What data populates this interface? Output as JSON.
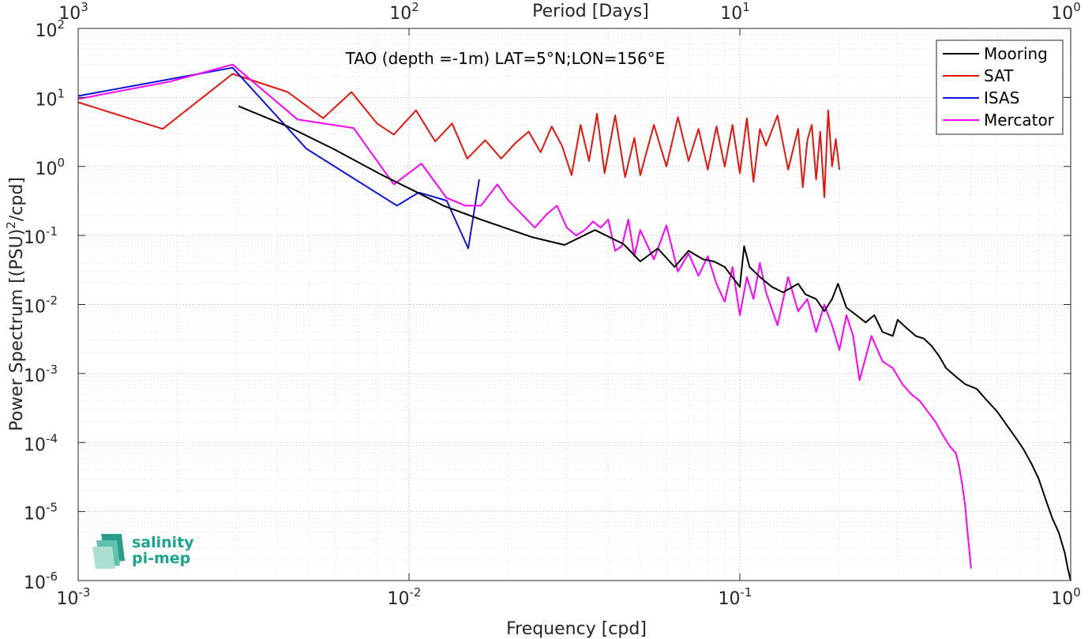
{
  "chart_data": {
    "type": "line",
    "title": "TAO (depth =-1m) LAT=5°N;LON=156°E",
    "xlabel": "Frequency [cpd]",
    "ylabel": "Power Spectrum [(PSU)²/cpd]",
    "ylabel_parts": {
      "pre": "Power Spectrum [(PSU)",
      "sup": "2",
      "post": "/cpd]"
    },
    "top_xlabel": "Period [Days]",
    "x_scale": "log",
    "y_scale": "log",
    "xlim": [
      0.001,
      1
    ],
    "ylim": [
      1e-06,
      100
    ],
    "grid": true,
    "minor_grid": true,
    "legend_position": "top-right",
    "x_ticks": [
      {
        "value": 0.001,
        "base": "10",
        "exp": "-3"
      },
      {
        "value": 0.01,
        "base": "10",
        "exp": "-2"
      },
      {
        "value": 0.1,
        "base": "10",
        "exp": "-1"
      },
      {
        "value": 1,
        "base": "10",
        "exp": "0"
      }
    ],
    "top_ticks": [
      {
        "value": 0.001,
        "base": "10",
        "exp": "3"
      },
      {
        "value": 0.01,
        "base": "10",
        "exp": "2"
      },
      {
        "value": 0.1,
        "base": "10",
        "exp": "1"
      },
      {
        "value": 1,
        "base": "10",
        "exp": "0"
      }
    ],
    "y_ticks": [
      {
        "value": 100,
        "base": "10",
        "exp": "2"
      },
      {
        "value": 10,
        "base": "10",
        "exp": "1"
      },
      {
        "value": 1,
        "base": "10",
        "exp": "0"
      },
      {
        "value": 0.1,
        "base": "10",
        "exp": "-1"
      },
      {
        "value": 0.01,
        "base": "10",
        "exp": "-2"
      },
      {
        "value": 0.001,
        "base": "10",
        "exp": "-3"
      },
      {
        "value": 0.0001,
        "base": "10",
        "exp": "-4"
      },
      {
        "value": 1e-05,
        "base": "10",
        "exp": "-5"
      },
      {
        "value": 1e-06,
        "base": "10",
        "exp": "-6"
      }
    ],
    "series": [
      {
        "name": "Mooring",
        "color": "#000000",
        "x": [
          0.00305,
          0.0043,
          0.0059,
          0.0083,
          0.0105,
          0.0127,
          0.0165,
          0.0235,
          0.0295,
          0.0365,
          0.0445,
          0.05,
          0.0565,
          0.0635,
          0.07,
          0.0775,
          0.0835,
          0.09,
          0.1,
          0.103,
          0.107,
          0.115,
          0.125,
          0.135,
          0.15,
          0.158,
          0.17,
          0.18,
          0.19,
          0.198,
          0.21,
          0.225,
          0.24,
          0.255,
          0.27,
          0.29,
          0.3,
          0.32,
          0.34,
          0.36,
          0.38,
          0.4,
          0.42,
          0.45,
          0.48,
          0.52,
          0.56,
          0.6,
          0.64,
          0.68,
          0.72,
          0.76,
          0.8,
          0.84,
          0.88,
          0.92,
          0.96,
          0.98,
          1.0
        ],
        "y": [
          7.5,
          3.8,
          1.8,
          0.75,
          0.43,
          0.27,
          0.17,
          0.095,
          0.073,
          0.12,
          0.075,
          0.042,
          0.065,
          0.035,
          0.06,
          0.045,
          0.042,
          0.035,
          0.018,
          0.07,
          0.035,
          0.025,
          0.018,
          0.015,
          0.02,
          0.014,
          0.012,
          0.008,
          0.012,
          0.02,
          0.009,
          0.007,
          0.0055,
          0.007,
          0.004,
          0.0035,
          0.006,
          0.0045,
          0.0035,
          0.0032,
          0.0025,
          0.0018,
          0.0012,
          0.0009,
          0.0007,
          0.0006,
          0.0004,
          0.00028,
          0.00018,
          0.00012,
          8e-05,
          5e-05,
          3e-05,
          1.5e-05,
          8e-06,
          5e-06,
          2.5e-06,
          1.5e-06,
          1e-06
        ]
      },
      {
        "name": "SAT",
        "color": "#e8140c",
        "x": [
          0.001,
          0.0018,
          0.00293,
          0.0043,
          0.0055,
          0.0067,
          0.008,
          0.009,
          0.0105,
          0.012,
          0.0135,
          0.015,
          0.017,
          0.019,
          0.021,
          0.023,
          0.025,
          0.027,
          0.029,
          0.031,
          0.033,
          0.035,
          0.037,
          0.039,
          0.042,
          0.045,
          0.048,
          0.05,
          0.055,
          0.06,
          0.065,
          0.07,
          0.075,
          0.08,
          0.085,
          0.09,
          0.095,
          0.1,
          0.105,
          0.11,
          0.115,
          0.12,
          0.13,
          0.14,
          0.15,
          0.155,
          0.16,
          0.165,
          0.17,
          0.175,
          0.18,
          0.185,
          0.19,
          0.195,
          0.2
        ],
        "y": [
          8.5,
          3.5,
          22,
          12,
          5,
          12,
          4.2,
          2.9,
          6.5,
          2.3,
          4.2,
          1.3,
          2.4,
          1.3,
          2.2,
          3.2,
          1.6,
          3.8,
          2.0,
          0.75,
          4.0,
          1.2,
          5.8,
          0.8,
          5.5,
          0.7,
          2.6,
          0.75,
          4.0,
          1.0,
          5.2,
          1.2,
          3.5,
          0.9,
          3.8,
          1.0,
          4.0,
          0.8,
          5.0,
          0.6,
          3.5,
          2.0,
          5.5,
          0.9,
          3.5,
          0.5,
          2.4,
          4.0,
          0.65,
          3.2,
          0.36,
          6.5,
          1.0,
          2.5,
          0.9
        ]
      },
      {
        "name": "ISAS",
        "color": "#0c14e0",
        "x": [
          0.001,
          0.00293,
          0.0049,
          0.0092,
          0.0107,
          0.013,
          0.0151,
          0.0163
        ],
        "y": [
          10.5,
          27,
          1.8,
          0.27,
          0.42,
          0.32,
          0.065,
          0.65
        ]
      },
      {
        "name": "Mercator",
        "color": "#ff00ff",
        "x": [
          0.001,
          0.0019,
          0.00293,
          0.0046,
          0.0068,
          0.009,
          0.0109,
          0.013,
          0.0148,
          0.0165,
          0.0185,
          0.02,
          0.022,
          0.024,
          0.026,
          0.028,
          0.03,
          0.032,
          0.034,
          0.036,
          0.038,
          0.04,
          0.042,
          0.044,
          0.046,
          0.048,
          0.05,
          0.055,
          0.06,
          0.065,
          0.07,
          0.075,
          0.08,
          0.085,
          0.09,
          0.095,
          0.1,
          0.105,
          0.11,
          0.115,
          0.12,
          0.13,
          0.14,
          0.15,
          0.16,
          0.17,
          0.18,
          0.19,
          0.2,
          0.21,
          0.22,
          0.23,
          0.25,
          0.27,
          0.29,
          0.31,
          0.33,
          0.35,
          0.37,
          0.39,
          0.41,
          0.43,
          0.45,
          0.46,
          0.47,
          0.48,
          0.49,
          0.5
        ],
        "y": [
          9.5,
          17,
          30,
          4.8,
          3.6,
          0.55,
          1.1,
          0.35,
          0.27,
          0.27,
          0.55,
          0.32,
          0.2,
          0.13,
          0.2,
          0.27,
          0.13,
          0.1,
          0.12,
          0.16,
          0.13,
          0.17,
          0.06,
          0.07,
          0.17,
          0.05,
          0.12,
          0.045,
          0.14,
          0.03,
          0.055,
          0.026,
          0.05,
          0.02,
          0.011,
          0.035,
          0.007,
          0.025,
          0.012,
          0.04,
          0.015,
          0.005,
          0.025,
          0.008,
          0.012,
          0.004,
          0.01,
          0.005,
          0.0022,
          0.007,
          0.0035,
          0.0008,
          0.0035,
          0.0015,
          0.0012,
          0.0007,
          0.0005,
          0.0004,
          0.00028,
          0.0002,
          0.00013,
          9e-05,
          7e-05,
          4.5e-05,
          2.5e-05,
          1.2e-05,
          4e-06,
          1.5e-06
        ]
      }
    ]
  },
  "logo": {
    "line1": "salinity",
    "line2": "pi-mep",
    "color": "#1aa58f"
  }
}
